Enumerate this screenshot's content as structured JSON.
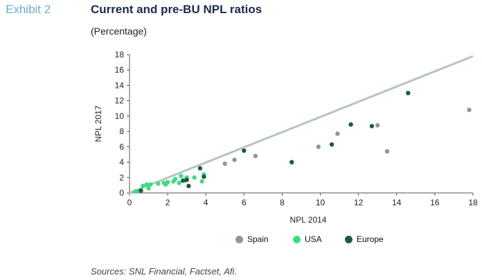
{
  "header": {
    "exhibit_label": "Exhibit 2",
    "title": "Current and pre-BU NPL ratios",
    "subtitle": "(Percentage)"
  },
  "footer": {
    "source": "Sources: SNL Financial, Factset, Afi."
  },
  "chart_data": {
    "type": "scatter",
    "title": "Current and pre-BU NPL ratios",
    "xlabel": "NPL 2014",
    "ylabel": "NPL 2017",
    "xlim": [
      0,
      18
    ],
    "ylim": [
      0,
      18
    ],
    "xticks": [
      0,
      2,
      4,
      6,
      8,
      10,
      12,
      14,
      16,
      18
    ],
    "yticks": [
      0,
      2,
      4,
      6,
      8,
      10,
      12,
      14,
      16,
      18
    ],
    "grid": false,
    "legend_position": "bottom",
    "reference_line": {
      "from": [
        0,
        0
      ],
      "to": [
        18,
        17.8
      ],
      "color": "#b7c4bf"
    },
    "series": [
      {
        "name": "Spain",
        "color": "#8e9896",
        "points": [
          [
            5.0,
            3.8
          ],
          [
            5.5,
            4.3
          ],
          [
            6.6,
            4.8
          ],
          [
            9.9,
            6.0
          ],
          [
            10.9,
            7.7
          ],
          [
            13.0,
            8.8
          ],
          [
            13.5,
            5.4
          ],
          [
            17.8,
            10.8
          ]
        ]
      },
      {
        "name": "USA",
        "color": "#3ddc84",
        "points": [
          [
            0.3,
            0.2
          ],
          [
            0.4,
            0.2
          ],
          [
            0.7,
            0.9
          ],
          [
            0.9,
            1.1
          ],
          [
            1.0,
            0.6
          ],
          [
            1.1,
            1.1
          ],
          [
            1.5,
            1.2
          ],
          [
            1.8,
            1.3
          ],
          [
            1.9,
            1.1
          ],
          [
            2.0,
            1.4
          ],
          [
            2.3,
            1.5
          ],
          [
            2.4,
            1.8
          ],
          [
            2.6,
            1.3
          ],
          [
            2.7,
            2.2
          ],
          [
            2.9,
            1.6
          ],
          [
            3.0,
            2.0
          ],
          [
            3.4,
            2.0
          ],
          [
            3.8,
            1.5
          ],
          [
            3.9,
            2.4
          ]
        ]
      },
      {
        "name": "Europe",
        "color": "#1e5b3c",
        "points": [
          [
            0.6,
            0.3
          ],
          [
            2.8,
            1.6
          ],
          [
            3.0,
            1.7
          ],
          [
            3.1,
            0.9
          ],
          [
            3.7,
            3.2
          ],
          [
            3.9,
            2.1
          ],
          [
            6.0,
            5.5
          ],
          [
            8.5,
            4.0
          ],
          [
            10.6,
            6.3
          ],
          [
            11.6,
            8.9
          ],
          [
            12.7,
            8.7
          ],
          [
            14.6,
            13.0
          ]
        ]
      }
    ]
  }
}
